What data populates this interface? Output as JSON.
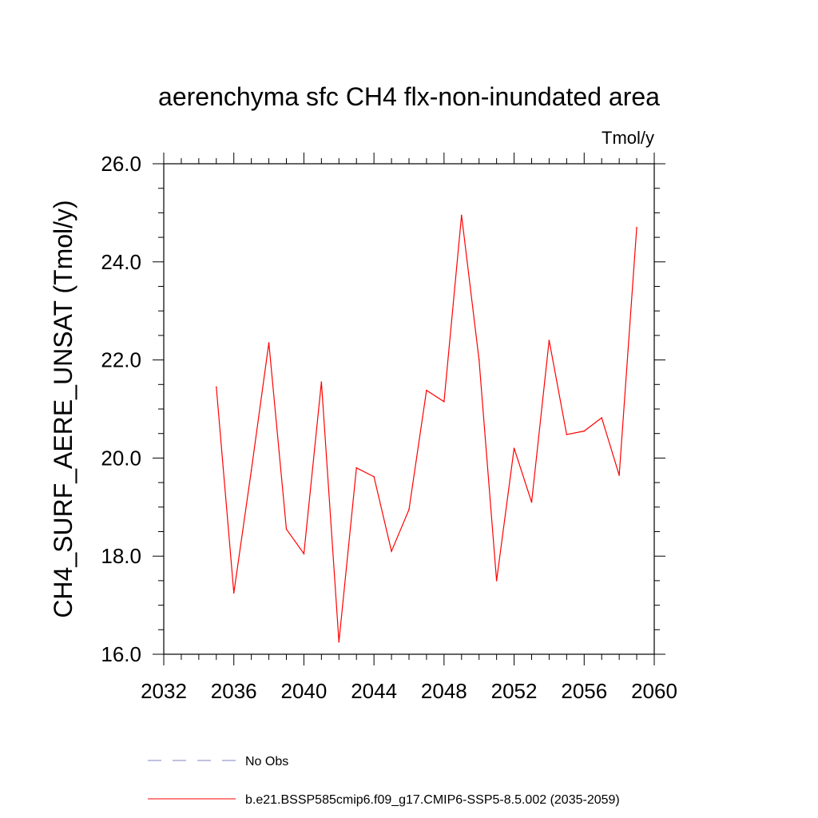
{
  "chart_data": {
    "type": "line",
    "title": "aerenchyma sfc CH4 flx-non-inundated area",
    "units_label": "Tmol/y",
    "ylabel": "CH4_SURF_AERE_UNSAT  (Tmol/y)",
    "xlabel": "",
    "xlim": [
      2032,
      2060
    ],
    "ylim": [
      16.0,
      26.0
    ],
    "x_ticks": [
      "2032",
      "2036",
      "2040",
      "2044",
      "2048",
      "2052",
      "2056",
      "2060"
    ],
    "y_ticks": [
      "16.0",
      "18.0",
      "20.0",
      "22.0",
      "24.0",
      "26.0"
    ],
    "grid": false,
    "legend_position": "bottom",
    "series": [
      {
        "name": "b.e21.BSSP585cmip6.f09_g17.CMIP6-SSP5-8.5.002 (2035-2059)",
        "color": "#ff0000",
        "style": "solid",
        "x": [
          2035,
          2036,
          2037,
          2038,
          2039,
          2040,
          2041,
          2042,
          2043,
          2044,
          2045,
          2046,
          2047,
          2048,
          2049,
          2050,
          2051,
          2052,
          2053,
          2054,
          2055,
          2056,
          2057,
          2058,
          2059
        ],
        "y": [
          21.45,
          17.25,
          19.75,
          22.35,
          18.55,
          18.05,
          21.55,
          16.25,
          19.8,
          19.62,
          18.1,
          18.95,
          21.38,
          21.15,
          24.95,
          22.0,
          17.5,
          20.2,
          19.1,
          22.4,
          20.48,
          20.55,
          20.82,
          19.65,
          24.7
        ]
      }
    ],
    "legend": [
      {
        "label": "No Obs",
        "color": "#8080c0",
        "style": "dashed"
      },
      {
        "label": "b.e21.BSSP585cmip6.f09_g17.CMIP6-SSP5-8.5.002 (2035-2059)",
        "color": "#ff0000",
        "style": "solid"
      }
    ]
  }
}
